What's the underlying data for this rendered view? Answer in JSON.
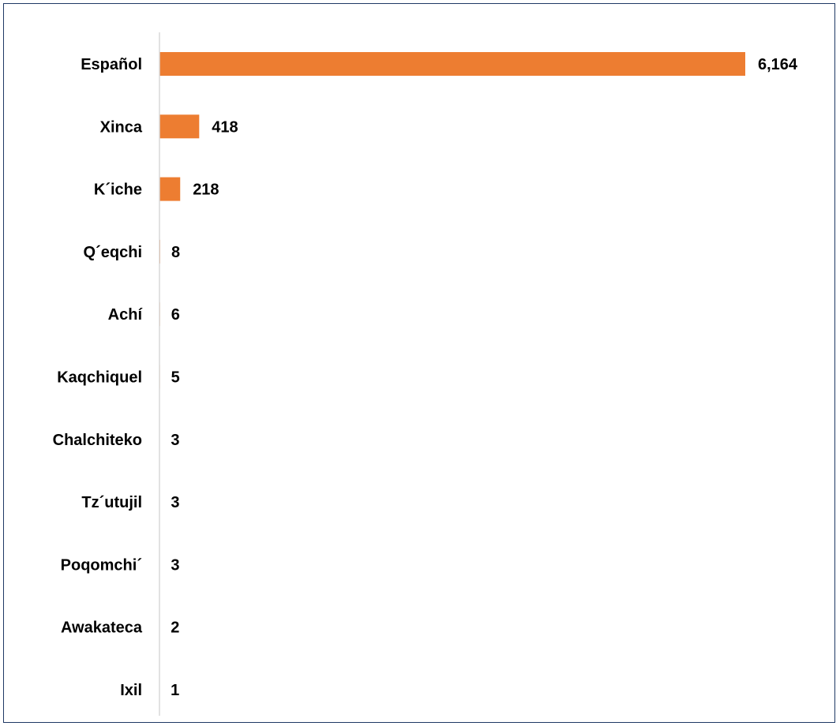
{
  "chart_data": {
    "type": "bar",
    "orientation": "horizontal",
    "title": "",
    "xlabel": "",
    "ylabel": "",
    "categories": [
      "Español",
      "Xinca",
      "K´iche",
      "Q´eqchi",
      "Achí",
      "Kaqchiquel",
      "Chalchiteko",
      "Tz´utujil",
      "Poqomchi´",
      "Awakateca",
      "Ixil"
    ],
    "values": [
      6164,
      418,
      218,
      8,
      6,
      5,
      3,
      3,
      3,
      2,
      1
    ],
    "value_labels": [
      "6,164",
      "418",
      "218",
      "8",
      "6",
      "5",
      "3",
      "3",
      "3",
      "2",
      "1"
    ],
    "xlim": [
      0,
      6164
    ],
    "grid": false,
    "legend": "none",
    "bar_color": "#ED7D31",
    "axis_color": "#D9D9D9",
    "border_color": "#1F3864"
  }
}
